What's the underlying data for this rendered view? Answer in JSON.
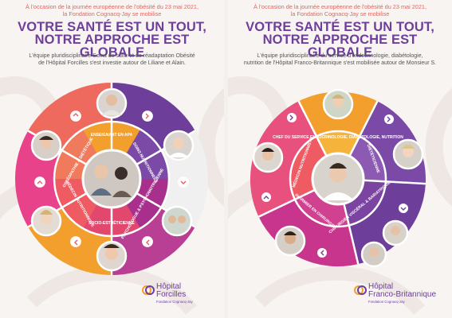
{
  "left": {
    "intro": [
      "À l'occasion de la journée européenne de l'obésité du 23 mai 2021,",
      "la Fondation Cognacq-Jay se mobilise"
    ],
    "title": [
      "VOTRE SANTÉ EST UN TOUT,",
      "NOTRE APPROCHE EST GLOBALE"
    ],
    "description": [
      "L'équipe pluridisciplinaire Soins de suite et de réadaptation Obésité",
      "de l'Hôpital Forcilles s'est investie autour de Liliane et Alain."
    ],
    "segments": [
      "ENSEIGNANT EN APA",
      "SOINS NUTRITIONNELS",
      "PSYCHOLOGUE & PSYCHOMOTRICIENNE",
      "SOCIO-ESTHÉTICIENNE",
      "MÉDECIN NUTRITIONNISTE",
      "OSTÉOPATHIE & DIÉTÉTIQUE"
    ],
    "logo": {
      "name_line1": "Hôpital",
      "name_line2": "Forcilles",
      "sub": "Fondation Cognacq-Jay"
    }
  },
  "right": {
    "intro": [
      "À l'occasion de la journée européenne de l'obésité du 23 mai 2021,",
      "la Fondation Cognacq-Jay se mobilise"
    ],
    "title": [
      "VOTRE SANTÉ EST UN TOUT,",
      "NOTRE APPROCHE EST GLOBALE"
    ],
    "description": [
      "L'équipe pluridisciplinaire du service d'endocrinologie, diabétologie,",
      "nutrition de l'Hôpital Franco-Britannique s'est mobilisée autour de Monsieur S."
    ],
    "segments": [
      "CHEF DU SERVICE ENDOCRINOLOGIE, DIABÉTOLOGIE, NUTRITION",
      "DIÉTÉTICIENNE",
      "CHIRURGIEN VISCÉRAL & BARIATRIQUE",
      "INFIRMIER EN CHIRURGIE",
      "MÉDECIN NUTRITIONNISTE"
    ],
    "logo": {
      "name_line1": "Hôpital",
      "name_line2": "Franco-Britannique",
      "sub": "Fondation Cognacq-Jay"
    }
  },
  "colors": {
    "orange": "#f29f2d",
    "purple": "#6d3e9a",
    "magenta": "#c8358c",
    "coral": "#ef5b63",
    "pink": "#e7428a",
    "title": "#6d3e9a",
    "intro": "#e2665e"
  }
}
